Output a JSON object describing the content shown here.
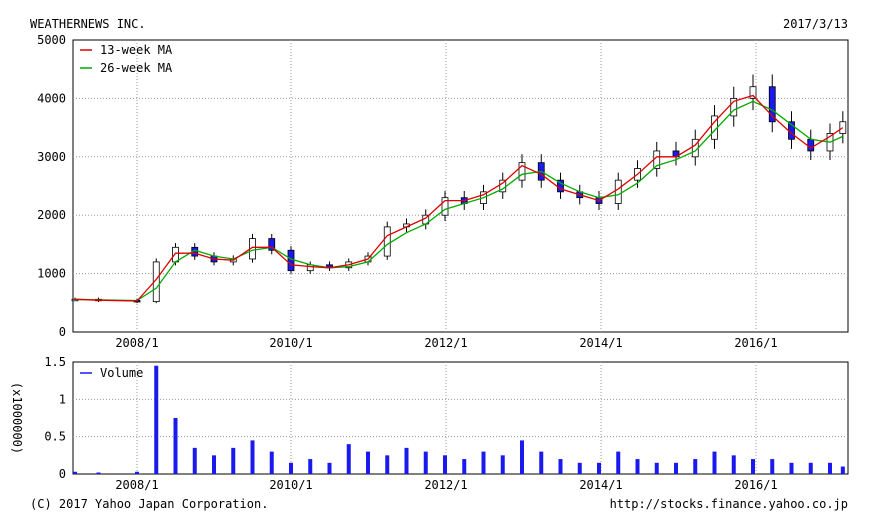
{
  "header": {
    "company": "WEATHERNEWS INC.",
    "date": "2017/3/13"
  },
  "footer": {
    "copyright": "(C) 2017 Yahoo Japan Corporation.",
    "url": "http://stocks.finance.yahoo.co.jp"
  },
  "colors": {
    "ma13": "#dd0000",
    "ma26": "#00aa00",
    "candle_down": "#1a1aee",
    "candle_up": "#ffffff",
    "volume": "#1a1aee",
    "grid": "#9a9a9a"
  },
  "chart_data": [
    {
      "type": "line",
      "subtype": "candlestick",
      "legend": [
        "13-week MA",
        "26-week MA"
      ],
      "legend_position": "top-left",
      "ylim": [
        0,
        5000
      ],
      "yticks": [
        "5000",
        "4000",
        "3000",
        "2000",
        "1000",
        "0"
      ],
      "xticks": [
        "2008/1",
        "2010/1",
        "2012/1",
        "2014/1",
        "2016/1"
      ],
      "grid": true,
      "x": [
        "2007/1",
        "2007/7",
        "2008/1",
        "2008/4",
        "2008/7",
        "2008/10",
        "2009/1",
        "2009/4",
        "2009/7",
        "2009/10",
        "2010/1",
        "2010/4",
        "2010/7",
        "2010/10",
        "2011/1",
        "2011/4",
        "2011/7",
        "2011/10",
        "2012/1",
        "2012/4",
        "2012/7",
        "2012/10",
        "2013/1",
        "2013/4",
        "2013/7",
        "2013/10",
        "2014/1",
        "2014/4",
        "2014/7",
        "2014/10",
        "2015/1",
        "2015/4",
        "2015/7",
        "2015/10",
        "2016/1",
        "2016/4",
        "2016/7",
        "2016/10",
        "2017/1",
        "2017/3"
      ],
      "series": [
        {
          "name": "Close",
          "values": [
            560,
            540,
            520,
            1200,
            1450,
            1300,
            1200,
            1250,
            1600,
            1400,
            1050,
            1150,
            1100,
            1200,
            1300,
            1800,
            1850,
            2000,
            2300,
            2200,
            2400,
            2600,
            2900,
            2600,
            2400,
            2300,
            2200,
            2600,
            2800,
            3100,
            3000,
            3300,
            3700,
            4000,
            4200,
            3600,
            3300,
            3100,
            3400,
            3600
          ]
        },
        {
          "name": "13-week MA",
          "values": [
            560,
            545,
            530,
            900,
            1350,
            1350,
            1250,
            1230,
            1450,
            1450,
            1150,
            1120,
            1100,
            1150,
            1250,
            1650,
            1800,
            1950,
            2250,
            2250,
            2350,
            2550,
            2850,
            2700,
            2450,
            2350,
            2250,
            2450,
            2700,
            3000,
            3000,
            3200,
            3600,
            3950,
            4050,
            3700,
            3400,
            3150,
            3350,
            3500
          ]
        },
        {
          "name": "26-week MA",
          "values": [
            560,
            550,
            540,
            750,
            1200,
            1400,
            1300,
            1250,
            1400,
            1450,
            1250,
            1150,
            1100,
            1120,
            1200,
            1500,
            1700,
            1850,
            2100,
            2200,
            2300,
            2450,
            2700,
            2750,
            2550,
            2400,
            2300,
            2350,
            2550,
            2850,
            2950,
            3100,
            3450,
            3800,
            3950,
            3800,
            3550,
            3300,
            3250,
            3350
          ]
        }
      ]
    },
    {
      "type": "bar",
      "legend": [
        "Volume"
      ],
      "legend_position": "top-left",
      "ylabel": "(x1000000)",
      "ylim": [
        0,
        1.5
      ],
      "yticks": [
        "1.5",
        "1",
        "0.5",
        "0"
      ],
      "xticks": [
        "2008/1",
        "2010/1",
        "2012/1",
        "2014/1",
        "2016/1"
      ],
      "grid": true,
      "x": [
        "2007/1",
        "2007/7",
        "2008/1",
        "2008/4",
        "2008/7",
        "2008/10",
        "2009/1",
        "2009/4",
        "2009/7",
        "2009/10",
        "2010/1",
        "2010/4",
        "2010/7",
        "2010/10",
        "2011/1",
        "2011/4",
        "2011/7",
        "2011/10",
        "2012/1",
        "2012/4",
        "2012/7",
        "2012/10",
        "2013/1",
        "2013/4",
        "2013/7",
        "2013/10",
        "2014/1",
        "2014/4",
        "2014/7",
        "2014/10",
        "2015/1",
        "2015/4",
        "2015/7",
        "2015/10",
        "2016/1",
        "2016/4",
        "2016/7",
        "2016/10",
        "2017/1",
        "2017/3"
      ],
      "series": [
        {
          "name": "Volume",
          "values": [
            0.03,
            0.02,
            0.03,
            1.45,
            0.75,
            0.35,
            0.25,
            0.35,
            0.45,
            0.3,
            0.15,
            0.2,
            0.15,
            0.4,
            0.3,
            0.25,
            0.35,
            0.3,
            0.25,
            0.2,
            0.3,
            0.25,
            0.45,
            0.3,
            0.2,
            0.15,
            0.15,
            0.3,
            0.2,
            0.15,
            0.15,
            0.2,
            0.3,
            0.25,
            0.2,
            0.2,
            0.15,
            0.15,
            0.15,
            0.1
          ]
        }
      ]
    }
  ]
}
